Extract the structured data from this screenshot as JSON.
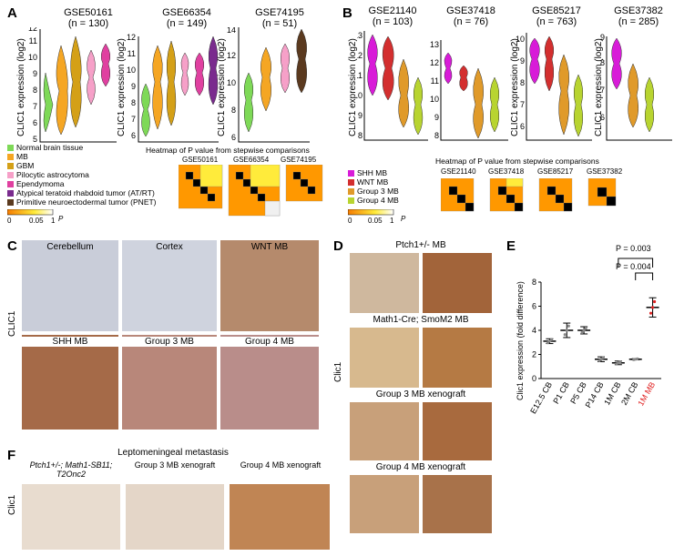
{
  "panels": {
    "A": {
      "label": "A",
      "datasets": [
        {
          "name": "GSE50161",
          "n": "(n = 130)"
        },
        {
          "name": "GSE66354",
          "n": "(n = 149)"
        },
        {
          "name": "GSE74195",
          "n": "(n = 51)"
        }
      ],
      "ylabel": "CLIC1 expression (log2)",
      "yticks_1": [
        "5",
        "6",
        "7",
        "8",
        "9",
        "10",
        "11",
        "12"
      ],
      "yticks_2": [
        "6",
        "7",
        "8",
        "9",
        "10",
        "11",
        "12"
      ],
      "yticks_3": [
        "6",
        "8",
        "10",
        "12",
        "14"
      ],
      "legend": [
        {
          "label": "Normal brain tissue",
          "color": "#7ed957"
        },
        {
          "label": "MB",
          "color": "#f5a623"
        },
        {
          "label": "GBM",
          "color": "#d4a017"
        },
        {
          "label": "Pilocytic astrocytoma",
          "color": "#f6a0c8"
        },
        {
          "label": "Ependymoma",
          "color": "#e040a0"
        },
        {
          "label": "Atypical teratoid rhabdoid tumor (AT/RT)",
          "color": "#7a2b8e"
        },
        {
          "label": "Primitive neuroectodermal tumor (PNET)",
          "color": "#5b3a1f"
        }
      ],
      "heatmap_title": "Heatmap of P value from stepwise comparisons",
      "heatmap_labels": [
        "GSE50161",
        "GSE66354",
        "GSE74195"
      ],
      "scale_labels": [
        "0",
        "0.05",
        "1",
        "P"
      ]
    },
    "B": {
      "label": "B",
      "datasets": [
        {
          "name": "GSE21140",
          "n": "(n = 103)"
        },
        {
          "name": "GSE37418",
          "n": "(n = 76)"
        },
        {
          "name": "GSE85217",
          "n": "(n = 763)"
        },
        {
          "name": "GSE37382",
          "n": "(n = 285)"
        }
      ],
      "ylabel": "CLIC1 expression (log2)",
      "yticks_1": [
        "8",
        "9",
        "10",
        "11",
        "12",
        "13"
      ],
      "yticks_2": [
        "8",
        "9",
        "10",
        "11",
        "12",
        "13"
      ],
      "yticks_3": [
        "6",
        "7",
        "8",
        "9",
        "10"
      ],
      "yticks_4": [
        "6",
        "7",
        "8",
        "9"
      ],
      "legend": [
        {
          "label": "SHH MB",
          "color": "#d81bd8"
        },
        {
          "label": "WNT MB",
          "color": "#d32f2f"
        },
        {
          "label": "Group 3 MB",
          "color": "#e09a2a"
        },
        {
          "label": "Group 4 MB",
          "color": "#b8d430"
        }
      ],
      "heatmap_title": "Heatmap of P value from stepwise comparisons",
      "heatmap_labels": [
        "GSE21140",
        "GSE37418",
        "GSE85217",
        "GSE37382"
      ],
      "scale_labels": [
        "0",
        "0.05",
        "1",
        "P"
      ]
    },
    "C": {
      "label": "C",
      "ylabel": "CLIC1",
      "tiles": [
        "Cerebellum",
        "Cortex",
        "WNT MB",
        "SHH MB",
        "Group 3 MB",
        "Group 4 MB"
      ]
    },
    "D": {
      "label": "D",
      "ylabel": "Clic1",
      "rows": [
        "Ptch1+/- MB",
        "Math1-Cre; SmoM2 MB",
        "Group 3 MB xenograft",
        "Group 4 MB xenograft"
      ]
    },
    "E": {
      "label": "E",
      "ylabel": "Clic1 expression (fold difference)",
      "pvals": [
        "P = 0.003",
        "P = 0.004"
      ]
    },
    "F": {
      "label": "F",
      "title": "Leptomeningeal metastasis",
      "ylabel": "Clic1",
      "tiles": [
        "Ptch1+/-; Math1-SB11; T2Onc2",
        "Group 3 MB xenograft",
        "Group 4 MB xenograft"
      ]
    }
  },
  "chart_data": [
    {
      "type": "bar",
      "title": "",
      "xlabel": "",
      "ylabel": "Clic1 expression (fold difference)",
      "ylim": [
        0,
        8
      ],
      "yticks": [
        0,
        2,
        4,
        6,
        8
      ],
      "categories": [
        "E12.5 CB",
        "P1 CB",
        "P5 CB",
        "P14 CB",
        "1M CB",
        "2M CB",
        "1M MB"
      ],
      "values": [
        3.1,
        4.0,
        4.0,
        1.6,
        1.3,
        1.6,
        5.9
      ],
      "errors": [
        0.2,
        0.6,
        0.3,
        0.2,
        0.15,
        0.05,
        0.8
      ],
      "highlight_color": "#e02020",
      "annotations": [
        "P = 0.003",
        "P = 0.004"
      ]
    }
  ]
}
